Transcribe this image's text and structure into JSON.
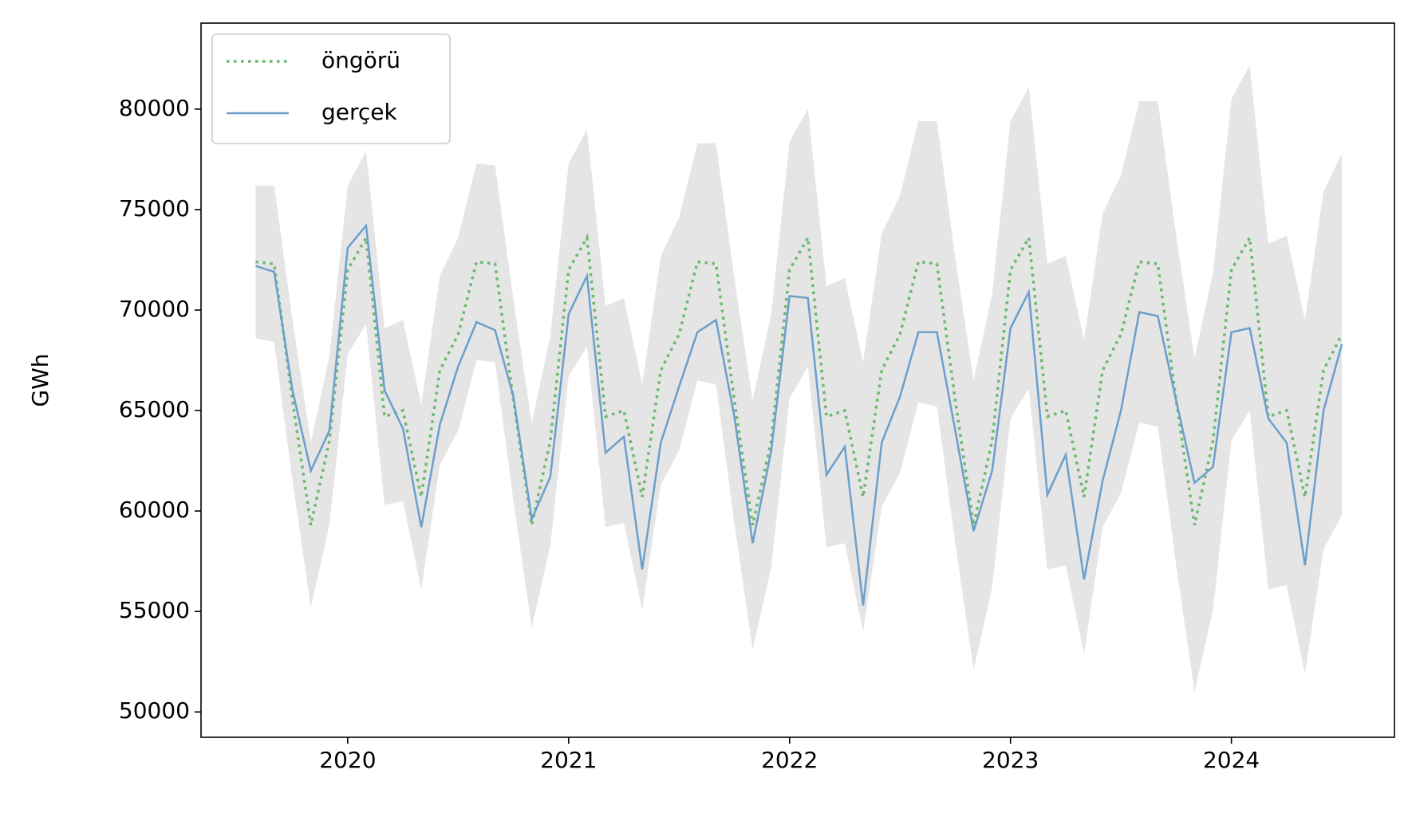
{
  "chart_data": {
    "type": "line",
    "y_label": "GWh",
    "x": [
      2019.583,
      2019.667,
      2019.75,
      2019.833,
      2019.917,
      2020,
      2020.083,
      2020.167,
      2020.25,
      2020.333,
      2020.417,
      2020.5,
      2020.583,
      2020.667,
      2020.75,
      2020.833,
      2020.917,
      2021,
      2021.083,
      2021.167,
      2021.25,
      2021.333,
      2021.417,
      2021.5,
      2021.583,
      2021.667,
      2021.75,
      2021.833,
      2021.917,
      2022,
      2022.083,
      2022.167,
      2022.25,
      2022.333,
      2022.417,
      2022.5,
      2022.583,
      2022.667,
      2022.75,
      2022.833,
      2022.917,
      2023,
      2023.083,
      2023.167,
      2023.25,
      2023.333,
      2023.417,
      2023.5,
      2023.583,
      2023.667,
      2023.75,
      2023.833,
      2023.917,
      2024,
      2024.083,
      2024.167,
      2024.25,
      2024.333,
      2024.417,
      2024.5
    ],
    "series": [
      {
        "name": "öngörü",
        "color": "#6cb86c",
        "dash": "dotted",
        "values": [
          72400,
          72300,
          65500,
          59300,
          63500,
          72000,
          73600,
          64700,
          65000,
          60700,
          67000,
          68800,
          72400,
          72300,
          65500,
          59300,
          63500,
          72000,
          73600,
          64700,
          65000,
          60700,
          67000,
          68800,
          72400,
          72300,
          65500,
          59300,
          63500,
          72000,
          73600,
          64700,
          65000,
          60700,
          67000,
          68800,
          72400,
          72300,
          65500,
          59300,
          63500,
          72000,
          73600,
          64700,
          65000,
          60700,
          67000,
          68800,
          72400,
          72300,
          65500,
          59300,
          63500,
          72000,
          73600,
          64700,
          65000,
          60700,
          67000,
          68800
        ]
      },
      {
        "name": "gerçek",
        "color": "#6a9fcb",
        "dash": "solid",
        "values": [
          72200,
          71900,
          66000,
          62000,
          64000,
          73100,
          74200,
          66000,
          64100,
          59200,
          64300,
          67200,
          69400,
          69000,
          65700,
          59600,
          61700,
          69800,
          71700,
          62900,
          63700,
          57100,
          63400,
          66200,
          68900,
          69500,
          64700,
          58400,
          63000,
          70700,
          70600,
          61800,
          63200,
          55300,
          63400,
          65700,
          68900,
          68900,
          64000,
          59000,
          62000,
          69100,
          70900,
          60800,
          62800,
          56600,
          61500,
          65000,
          69900,
          69700,
          65500,
          61400,
          62200,
          68900,
          69100,
          64600,
          63400,
          57300,
          65000,
          68300
        ]
      }
    ],
    "band": {
      "color": "#e5e5e5",
      "lower": [
        68600,
        68400,
        61500,
        55200,
        59300,
        67800,
        69300,
        60300,
        60500,
        56100,
        62300,
        64000,
        67500,
        67400,
        60500,
        54200,
        58300,
        66700,
        68200,
        59200,
        59400,
        55100,
        61300,
        63000,
        66500,
        66300,
        59400,
        53100,
        57200,
        65600,
        67200,
        58200,
        58400,
        54000,
        60200,
        61900,
        65400,
        65200,
        58400,
        52100,
        56200,
        64600,
        66100,
        57100,
        57300,
        52900,
        59200,
        60900,
        64400,
        64200,
        57300,
        51000,
        55100,
        63500,
        65000,
        56100,
        56300,
        51900,
        58100,
        59800
      ],
      "upper": [
        76200,
        76200,
        69500,
        63400,
        67700,
        76200,
        77900,
        69100,
        69500,
        65300,
        71700,
        73600,
        77300,
        77200,
        70500,
        64400,
        68700,
        77300,
        79000,
        70200,
        70600,
        66300,
        72700,
        74600,
        78300,
        78300,
        71600,
        65500,
        69800,
        78400,
        80000,
        71200,
        71600,
        67400,
        73800,
        75700,
        79400,
        79400,
        72600,
        66500,
        70800,
        79400,
        81100,
        72300,
        72700,
        68500,
        74800,
        76700,
        80400,
        80400,
        73700,
        67600,
        71900,
        80500,
        82200,
        73300,
        73700,
        69500,
        75900,
        77800
      ]
    },
    "xlim": [
      2019.336,
      2024.738
    ],
    "xticks": [
      2020,
      2021,
      2022,
      2023,
      2024
    ],
    "ylim": [
      48740,
      84280
    ],
    "yticks": [
      50000,
      55000,
      60000,
      65000,
      70000,
      75000,
      80000
    ],
    "legend_loc": "upper left"
  }
}
